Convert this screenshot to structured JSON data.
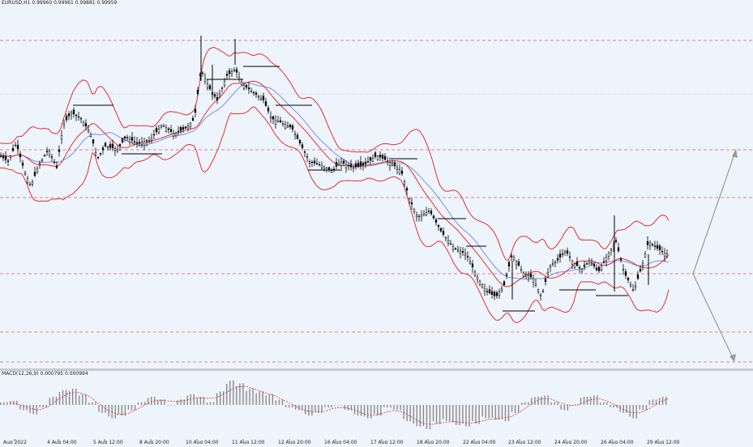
{
  "header": {
    "symbol": "EURUSD,H1",
    "ohlc": "0.99960 0.99961 0.99881 0.99959"
  },
  "indicator": {
    "macd_label": "MACD(12,26,9) 0.000795 0.000994"
  },
  "colors": {
    "background": "#eef4fc",
    "bollinger": "#e03030",
    "moving_average": "#7a8ee8",
    "levels": "#e06060",
    "candles": "#000000",
    "macd_hist": "#8a8a8a",
    "macd_signal": "#e03030",
    "arrows": "#999999"
  },
  "chart_data": [
    {
      "type": "candlestick",
      "x_ticks": [
        "Aug 2022",
        "4 Aug 04:00",
        "5 Aug 12:00",
        "8 Aug 20:00",
        "10 Aug 04:00",
        "11 Aug 12:00",
        "12 Aug 20:00",
        "16 Aug 04:00",
        "17 Aug 12:00",
        "18 Aug 20:00",
        "22 Aug 04:00",
        "23 Aug 12:00",
        "24 Aug 20:00",
        "26 Aug 04:00",
        "29 Aug 12:00"
      ],
      "price_path": [
        [
          0,
          0.4
        ],
        [
          10,
          0.42
        ],
        [
          20,
          0.36
        ],
        [
          30,
          0.45
        ],
        [
          38,
          0.5
        ],
        [
          48,
          0.43
        ],
        [
          60,
          0.38
        ],
        [
          70,
          0.44
        ],
        [
          78,
          0.3
        ],
        [
          88,
          0.26
        ],
        [
          100,
          0.28
        ],
        [
          112,
          0.33
        ],
        [
          120,
          0.41
        ],
        [
          130,
          0.37
        ],
        [
          145,
          0.38
        ],
        [
          155,
          0.34
        ],
        [
          170,
          0.36
        ],
        [
          185,
          0.35
        ],
        [
          200,
          0.3
        ],
        [
          215,
          0.33
        ],
        [
          230,
          0.31
        ],
        [
          240,
          0.28
        ],
        [
          248,
          0.12
        ],
        [
          258,
          0.18
        ],
        [
          268,
          0.22
        ],
        [
          280,
          0.14
        ],
        [
          290,
          0.12
        ],
        [
          300,
          0.17
        ],
        [
          315,
          0.2
        ],
        [
          325,
          0.22
        ],
        [
          335,
          0.28
        ],
        [
          345,
          0.29
        ],
        [
          360,
          0.31
        ],
        [
          370,
          0.36
        ],
        [
          382,
          0.42
        ],
        [
          395,
          0.43
        ],
        [
          410,
          0.45
        ],
        [
          420,
          0.42
        ],
        [
          435,
          0.44
        ],
        [
          450,
          0.43
        ],
        [
          465,
          0.4
        ],
        [
          480,
          0.42
        ],
        [
          495,
          0.45
        ],
        [
          505,
          0.54
        ],
        [
          515,
          0.6
        ],
        [
          530,
          0.58
        ],
        [
          545,
          0.65
        ],
        [
          560,
          0.7
        ],
        [
          575,
          0.72
        ],
        [
          590,
          0.8
        ],
        [
          600,
          0.84
        ],
        [
          612,
          0.86
        ],
        [
          622,
          0.82
        ],
        [
          632,
          0.72
        ],
        [
          645,
          0.78
        ],
        [
          658,
          0.8
        ],
        [
          668,
          0.86
        ],
        [
          678,
          0.76
        ],
        [
          688,
          0.74
        ],
        [
          698,
          0.71
        ],
        [
          708,
          0.75
        ],
        [
          718,
          0.77
        ],
        [
          728,
          0.74
        ],
        [
          738,
          0.78
        ],
        [
          750,
          0.72
        ],
        [
          760,
          0.68
        ],
        [
          770,
          0.78
        ],
        [
          782,
          0.84
        ],
        [
          792,
          0.76
        ],
        [
          800,
          0.68
        ],
        [
          810,
          0.7
        ],
        [
          822,
          0.72
        ]
      ],
      "overlays": [
        "Bollinger Bands",
        "Moving Average"
      ],
      "horizontal_levels": 6,
      "forecast_arrows": [
        "up",
        "down"
      ],
      "grid": false
    },
    {
      "type": "bar",
      "title": "MACD(12,26,9) 0.000795 0.000994",
      "values_shape": [
        0.1,
        0.15,
        -0.2,
        -0.35,
        -0.1,
        0.3,
        0.55,
        0.6,
        0.4,
        0.1,
        -0.3,
        -0.5,
        -0.4,
        -0.2,
        0.1,
        0.3,
        0.2,
        0.0,
        0.2,
        0.4,
        0.3,
        0.1,
        0.5,
        0.9,
        0.8,
        0.6,
        0.5,
        0.4,
        0.2,
        -0.1,
        -0.2,
        -0.4,
        -0.3,
        -0.1,
        0.0,
        -0.2,
        -0.4,
        -0.5,
        -0.4,
        -0.1,
        -0.2,
        -0.6,
        -0.8,
        -0.9,
        -0.7,
        -0.6,
        -0.75,
        -0.8,
        -0.7,
        -0.5,
        -0.55,
        -0.6,
        -0.3,
        0.1,
        0.3,
        0.35,
        0.1,
        -0.2,
        0.0,
        0.3,
        0.35,
        0.1,
        -0.1,
        -0.3,
        -0.5,
        -0.2,
        0.2,
        0.3
      ]
    }
  ]
}
